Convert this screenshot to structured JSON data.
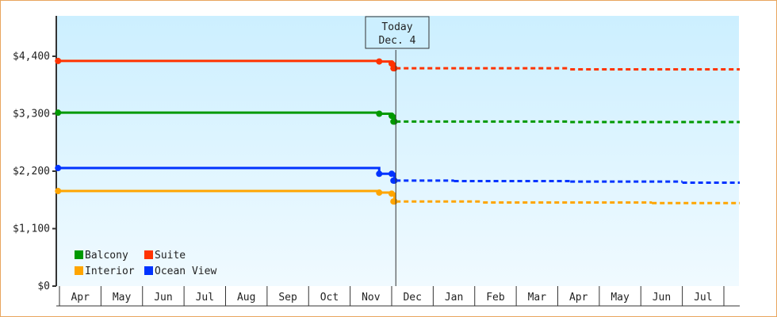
{
  "chart_data": {
    "type": "line",
    "today": {
      "label": "Today",
      "date": "Dec. 4",
      "x": "Dec 4"
    },
    "y_ticks": [
      "$0",
      "$1,100",
      "$2,200",
      "$3,300",
      "$4,400"
    ],
    "y_tick_values": [
      0,
      1100,
      2200,
      3300,
      4400
    ],
    "ylim": [
      0,
      4900
    ],
    "x_ticks": [
      "Apr",
      "May",
      "Jun",
      "Jul",
      "Aug",
      "Sep",
      "Oct",
      "Nov",
      "Dec",
      "Jan",
      "Feb",
      "Mar",
      "Apr",
      "May",
      "Jun",
      "Jul"
    ],
    "x_end": "Aug 11",
    "legend_position": "bottom-left",
    "series": [
      {
        "name": "Balcony",
        "color": "#009900",
        "points": [
          [
            "Mar 30",
            3320
          ],
          [
            "Nov 22",
            3300
          ],
          [
            "Dec 1",
            3260
          ],
          [
            "Dec 3",
            3150
          ],
          [
            "Apr 10",
            3140
          ]
        ]
      },
      {
        "name": "Suite",
        "color": "#ff3300",
        "points": [
          [
            "Mar 30",
            4310
          ],
          [
            "Nov 22",
            4300
          ],
          [
            "Dec 1",
            4260
          ],
          [
            "Dec 3",
            4170
          ],
          [
            "Apr 10",
            4150
          ]
        ]
      },
      {
        "name": "Interior",
        "color": "#ffa500",
        "points": [
          [
            "Mar 30",
            1820
          ],
          [
            "Nov 22",
            1790
          ],
          [
            "Dec 1",
            1770
          ],
          [
            "Dec 3",
            1620
          ],
          [
            "Feb 7",
            1600
          ],
          [
            "Jun 9",
            1590
          ]
        ]
      },
      {
        "name": "Ocean View",
        "color": "#0033ff",
        "points": [
          [
            "Mar 30",
            2260
          ],
          [
            "Nov 22",
            2150
          ],
          [
            "Dec 1",
            2150
          ],
          [
            "Dec 3",
            2020
          ],
          [
            "Jan 16",
            2010
          ],
          [
            "Apr 10",
            2000
          ],
          [
            "Jul 1",
            1980
          ]
        ]
      }
    ],
    "grid": false
  }
}
